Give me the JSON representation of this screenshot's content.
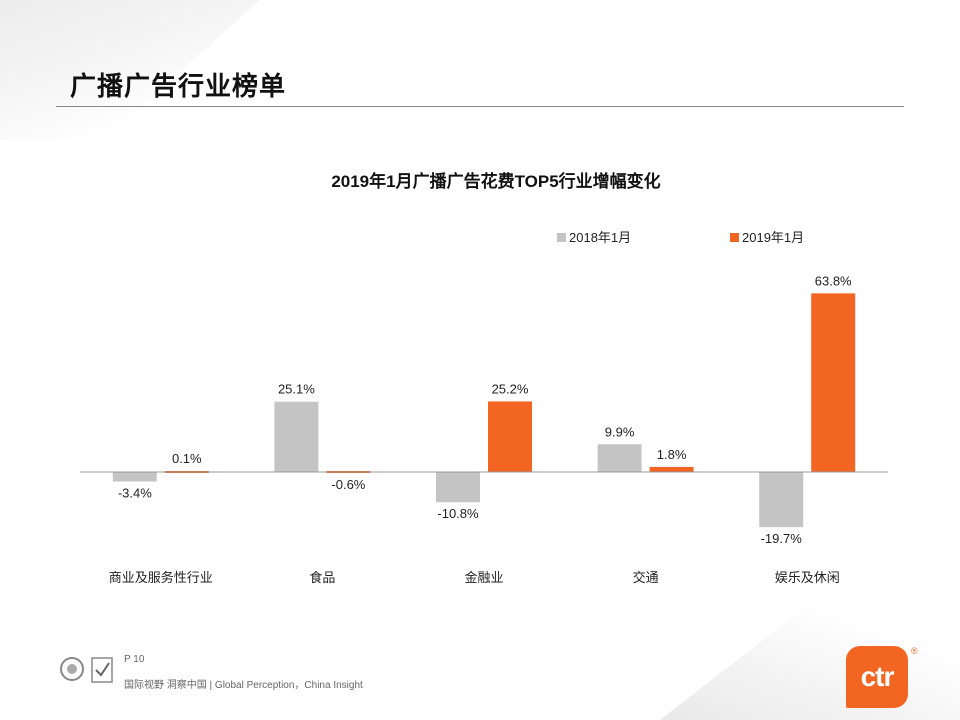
{
  "page": {
    "title": "广播广告行业榜单",
    "page_number": "P 10",
    "slogan": "国际视野 洞察中国 | Global Perception，China Insight",
    "logo_text": "ctr",
    "logo_mark": "®"
  },
  "colors": {
    "series_2018": "#c4c4c4",
    "series_2019": "#f26522",
    "axis": "#999999",
    "text": "#222222"
  },
  "chart_data": {
    "type": "bar",
    "title": "2019年1月广播广告花费TOP5行业增幅变化",
    "categories": [
      "商业及服务性行业",
      "食品",
      "金融业",
      "交通",
      "娱乐及休闲"
    ],
    "series": [
      {
        "name": "2018年1月",
        "values": [
          -3.4,
          25.1,
          -10.8,
          9.9,
          -19.7
        ],
        "labels": [
          "-3.4%",
          "25.1%",
          "-10.8%",
          "9.9%",
          "-19.7%"
        ]
      },
      {
        "name": "2019年1月",
        "values": [
          0.1,
          -0.6,
          25.2,
          1.8,
          63.8
        ],
        "labels": [
          "0.1%",
          "-0.6%",
          "25.2%",
          "1.8%",
          "63.8%"
        ]
      }
    ],
    "legend": "top-right",
    "grid": false,
    "ylim": [
      -25,
      70
    ]
  }
}
